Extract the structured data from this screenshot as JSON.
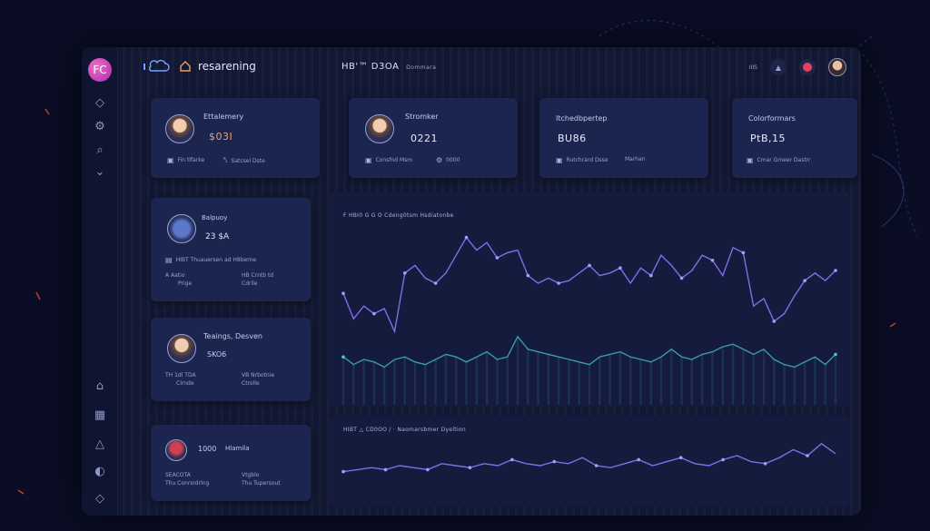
{
  "app": {
    "brand_name": "resarening",
    "page_title": "HB'™ D3OA",
    "page_subtitle": "Dommara",
    "top_label": "IIIS"
  },
  "sidebar": {
    "logo_text": "FC",
    "items": [
      {
        "icon": "diamond-icon",
        "glyph": "◇"
      },
      {
        "icon": "gear-icon",
        "glyph": "⚙"
      },
      {
        "icon": "search-icon",
        "glyph": "⌕"
      },
      {
        "icon": "chevron-down-icon",
        "glyph": "⌄"
      },
      {
        "icon": "gamepad-icon",
        "glyph": "⌂"
      },
      {
        "icon": "calendar-icon",
        "glyph": "▦"
      },
      {
        "icon": "alert-icon",
        "glyph": "△"
      },
      {
        "icon": "chart-icon",
        "glyph": "◐"
      },
      {
        "icon": "settings-diamond-icon",
        "glyph": "◇"
      }
    ]
  },
  "stat_cards": [
    {
      "label": "Ettalemery",
      "value": "$03I",
      "meta1": "Fin tlfarke",
      "meta2": "Satcsel Dste"
    },
    {
      "label": "Stromker",
      "value": "0221",
      "meta1": "Consfnd Msm",
      "meta2": "0000"
    },
    {
      "label": "Itchedbpertep",
      "value": "BU86",
      "meta1": "Rutchrard Dsse",
      "meta2": "Marhan"
    },
    {
      "label": "Colorformars",
      "value": "PtB,15",
      "meta1": "Cmar Gmeer Dastrr",
      "meta2": ""
    }
  ],
  "side_cards": [
    {
      "label": "Balpuoy",
      "value": "23 $A",
      "line": "HIBT  Thuauersen ad H8berne",
      "meta1": "A Aatio",
      "meta1b": "Prige",
      "meta2": "HB Crntb td",
      "meta2b": "Cdrile"
    },
    {
      "label": "Teaings, Desven",
      "value": "SKO6",
      "line": "",
      "meta1": "TH 1dl TDA",
      "meta1b": "Clrnde",
      "meta2": "VB Nrbotnie",
      "meta2b": "Ctrolle"
    },
    {
      "label": "Hlamila",
      "value": "1000",
      "line": "",
      "meta1": "SEACOTA",
      "meta1b": "Thu Conrsrdrlng",
      "meta2": "Vtgblo",
      "meta2b": "Thu Tupersout"
    }
  ],
  "chart_panel": {
    "title": "F HBI0 G G O   Cdeng0tsm Hsdiatonbe"
  },
  "chart_panel2": {
    "title": "HIBT  △  CD0OO  /  ·  Naomarsbmer Dyeltion"
  },
  "colors": {
    "primary_line": "#7f6ee8",
    "teal_line": "#3a9aa8",
    "accent_pink": "#d04fb8",
    "bg": "#0a0d24"
  },
  "chart_data": [
    {
      "type": "line",
      "series": [
        {
          "values": [
            4.1,
            3.1,
            3.6,
            3.3,
            3.5,
            2.6,
            4.9,
            5.2,
            4.7,
            4.5,
            4.9,
            5.6,
            6.3,
            5.8,
            6.1,
            5.5,
            5.7,
            5.8,
            4.8,
            4.5,
            4.7,
            4.5,
            4.6,
            4.9,
            5.2,
            4.8,
            4.9,
            5.1,
            4.5,
            5.1,
            4.8,
            5.6,
            5.2,
            4.7,
            5.0,
            5.6,
            5.4,
            4.8,
            5.9,
            5.7,
            3.6,
            3.9,
            3.0,
            3.3,
            4.0,
            4.6,
            4.9,
            4.6,
            5.0
          ]
        },
        {
          "values": [
            1.6,
            1.3,
            1.5,
            1.4,
            1.2,
            1.5,
            1.6,
            1.4,
            1.3,
            1.5,
            1.7,
            1.6,
            1.4,
            1.6,
            1.8,
            1.5,
            1.6,
            2.4,
            1.9,
            1.8,
            1.7,
            1.6,
            1.5,
            1.4,
            1.3,
            1.6,
            1.7,
            1.8,
            1.6,
            1.5,
            1.4,
            1.6,
            1.9,
            1.6,
            1.5,
            1.7,
            1.8,
            2.0,
            2.1,
            1.9,
            1.7,
            1.9,
            1.5,
            1.3,
            1.2,
            1.4,
            1.6,
            1.3,
            1.7
          ]
        }
      ],
      "ylim": [
        0,
        7
      ]
    },
    {
      "type": "line",
      "series": [
        {
          "values": [
            1.2,
            1.3,
            1.4,
            1.3,
            1.5,
            1.4,
            1.3,
            1.6,
            1.5,
            1.4,
            1.6,
            1.5,
            1.8,
            1.6,
            1.5,
            1.7,
            1.6,
            1.9,
            1.5,
            1.4,
            1.6,
            1.8,
            1.5,
            1.7,
            1.9,
            1.6,
            1.5,
            1.8,
            2.0,
            1.7,
            1.6,
            1.9,
            2.3,
            2.0,
            2.6,
            2.1
          ]
        }
      ],
      "ylim": [
        0,
        3
      ]
    }
  ]
}
